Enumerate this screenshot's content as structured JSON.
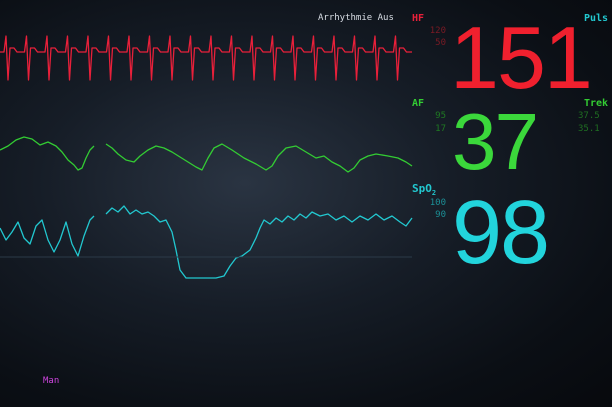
{
  "colors": {
    "ecg": "#e8203a",
    "resp": "#33cc33",
    "spo2": "#22c8d0",
    "mode": "#cc44dd"
  },
  "header": {
    "alarm_status": "Arrhythmie Aus"
  },
  "hr": {
    "label": "HF",
    "alarm_high": "120",
    "alarm_low": "50",
    "value": "151",
    "right_label": "Puls"
  },
  "resp": {
    "label": "AF",
    "alarm_high": "95",
    "alarm_low": "17",
    "value": "37",
    "right_label": "Trek",
    "right_high": "37.5",
    "right_low": "35.1"
  },
  "spo2": {
    "label": "SpO",
    "label_sub": "2",
    "alarm_high": "100",
    "alarm_low": "90",
    "value": "98"
  },
  "footer": {
    "mode": "Man"
  }
}
